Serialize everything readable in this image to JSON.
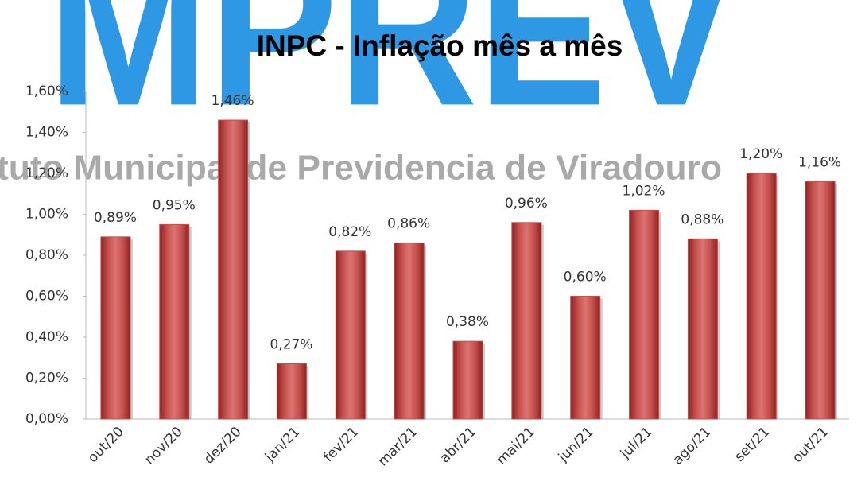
{
  "chart_data": {
    "type": "bar",
    "title": "INPC - Inflação mês a mês",
    "watermark_logo": "MPREV",
    "watermark_text": "tuto Municipal de Previdencia de Viradouro",
    "categories": [
      "out/20",
      "nov/20",
      "dez/20",
      "jan/21",
      "fev/21",
      "mar/21",
      "abr/21",
      "mai/21",
      "jun/21",
      "jul/21",
      "ago/21",
      "set/21",
      "out/21"
    ],
    "values": [
      0.89,
      0.95,
      1.46,
      0.27,
      0.82,
      0.86,
      0.38,
      0.96,
      0.6,
      1.02,
      0.88,
      1.2,
      1.16
    ],
    "value_labels": [
      "0,89%",
      "0,95%",
      "1,46%",
      "0,27%",
      "0,82%",
      "0,86%",
      "0,38%",
      "0,96%",
      "0,60%",
      "1,02%",
      "0,88%",
      "1,20%",
      "1,16%"
    ],
    "color": "#c0504d",
    "ylim": [
      0,
      1.6
    ],
    "yticks": [
      {
        "value": 0,
        "label": "0,00%"
      },
      {
        "value": 0.2,
        "label": "0,20%"
      },
      {
        "value": 0.4,
        "label": "0,40%"
      },
      {
        "value": 0.6,
        "label": "0,60%"
      },
      {
        "value": 0.8,
        "label": "0,80%"
      },
      {
        "value": 1.0,
        "label": "1,00%"
      },
      {
        "value": 1.2,
        "label": "1,20%"
      },
      {
        "value": 1.4,
        "label": "1,40%"
      },
      {
        "value": 1.6,
        "label": "1,60%"
      }
    ],
    "grid": false
  }
}
